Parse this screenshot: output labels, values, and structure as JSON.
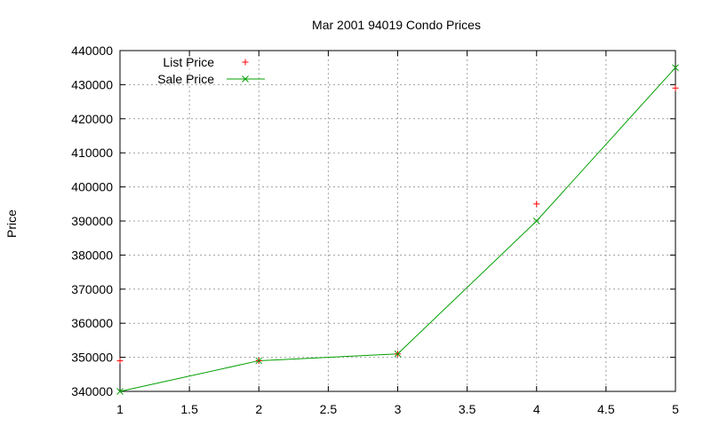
{
  "chart_data": {
    "type": "line",
    "title": "Mar 2001 94019 Condo Prices",
    "xlabel": "",
    "ylabel": "Price",
    "xlim": [
      1,
      5
    ],
    "ylim": [
      340000,
      440000
    ],
    "x_ticks": [
      1,
      1.5,
      2,
      2.5,
      3,
      3.5,
      4,
      4.5,
      5
    ],
    "y_ticks": [
      340000,
      350000,
      360000,
      370000,
      380000,
      390000,
      400000,
      410000,
      420000,
      430000,
      440000
    ],
    "grid": true,
    "legend_position": "top-left",
    "series": [
      {
        "name": "List Price",
        "style": "points",
        "marker": "plus",
        "color": "#ff0000",
        "x": [
          1,
          2,
          3,
          4,
          5
        ],
        "y": [
          349000,
          349000,
          351000,
          395000,
          429000
        ]
      },
      {
        "name": "Sale Price",
        "style": "linespoints",
        "marker": "cross",
        "color": "#00a000",
        "x": [
          1,
          2,
          3,
          4,
          5
        ],
        "y": [
          340000,
          349000,
          351000,
          390000,
          435000
        ]
      }
    ]
  }
}
